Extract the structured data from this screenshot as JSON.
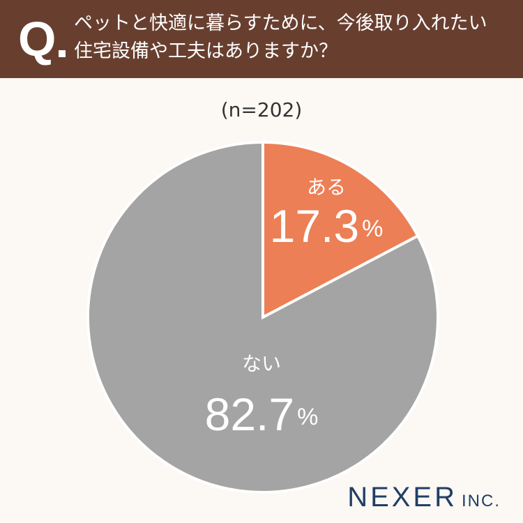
{
  "header": {
    "q_mark": "Q",
    "question_line1": "ペットと快適に暮らすために、今後取り入れたい",
    "question_line2": "住宅設備や工夫はありますか？"
  },
  "sample_size": "(n=202)",
  "logo": {
    "main": "NEXER",
    "sub": "INC."
  },
  "colors": {
    "header_bg": "#683f2f",
    "background": "#fcf8f4",
    "slice_yes": "#ec7f55",
    "slice_no": "#a4a4a4",
    "logo": "#1f3f66"
  },
  "chart_data": {
    "type": "pie",
    "title": "ペットと快適に暮らすために、今後取り入れたい住宅設備や工夫はありますか？",
    "categories": [
      "ある",
      "ない"
    ],
    "values": [
      17.3,
      82.7
    ],
    "value_labels": [
      "17.3",
      "82.7"
    ],
    "unit": "%",
    "colors": [
      "#ec7f55",
      "#a4a4a4"
    ],
    "start": "12 o'clock",
    "direction": "clockwise"
  }
}
